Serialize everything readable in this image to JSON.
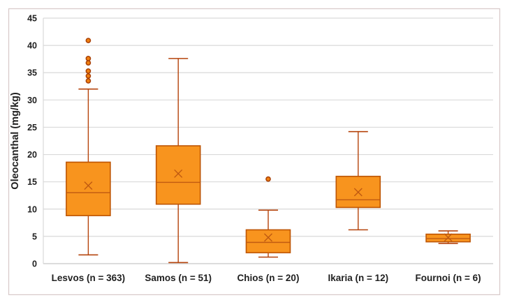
{
  "chart_data": {
    "type": "boxplot",
    "title": "",
    "ylabel": "Oleocanthal (mg/kg)",
    "xlabel": "",
    "ylim": [
      0,
      45
    ],
    "ytick_step": 5,
    "grid": true,
    "legend": "none",
    "categories": [
      "Lesvos (n = 363)",
      "Samos (n = 51)",
      "Chios (n = 20)",
      "Ikaria (n = 12)",
      "Fournoi (n = 6)"
    ],
    "series": [
      {
        "category": "Lesvos (n = 363)",
        "n": 363,
        "whisker_low": 1.6,
        "q1": 8.8,
        "median": 13.0,
        "mean": 14.3,
        "q3": 18.6,
        "whisker_high": 32.0,
        "outliers": [
          33.5,
          34.4,
          35.3,
          36.8,
          37.6,
          40.9
        ]
      },
      {
        "category": "Samos (n = 51)",
        "n": 51,
        "whisker_low": 0.2,
        "q1": 10.9,
        "median": 14.9,
        "mean": 16.5,
        "q3": 21.6,
        "whisker_high": 37.6,
        "outliers": []
      },
      {
        "category": "Chios (n = 20)",
        "n": 20,
        "whisker_low": 1.2,
        "q1": 2.0,
        "median": 3.9,
        "mean": 4.8,
        "q3": 6.2,
        "whisker_high": 9.8,
        "outliers": [
          15.5
        ]
      },
      {
        "category": "Ikaria (n = 12)",
        "n": 12,
        "whisker_low": 6.2,
        "q1": 10.3,
        "median": 11.7,
        "mean": 13.1,
        "q3": 16.0,
        "whisker_high": 24.2,
        "outliers": []
      },
      {
        "category": "Fournoi (n = 6)",
        "n": 6,
        "whisker_low": 3.7,
        "q1": 4.0,
        "median": 4.6,
        "mean": 4.8,
        "q3": 5.4,
        "whisker_high": 6.0,
        "outliers": []
      }
    ],
    "colors": {
      "box_fill": "#F8941E",
      "box_border": "#BE5504",
      "median_line": "#C05A11",
      "mean_marker": "#C05A11",
      "whisker": "#B5430B",
      "outlier_fill": "#F08010",
      "outlier_border": "#A84008",
      "gridline": "#D9D9D9",
      "axis_line": "#C6C6C6",
      "frame": "#D9CBCB",
      "text": "#212121",
      "background": "#FFFFFF"
    }
  }
}
